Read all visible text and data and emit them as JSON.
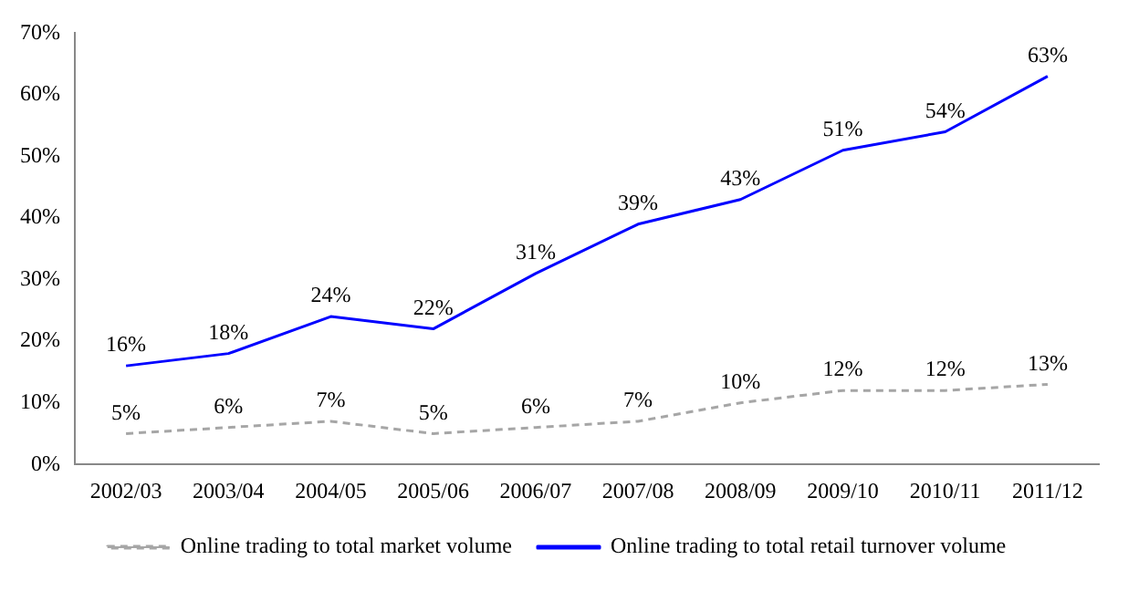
{
  "chart_data": {
    "type": "line",
    "categories": [
      "2002/03",
      "2003/04",
      "2004/05",
      "2005/06",
      "2006/07",
      "2007/08",
      "2008/09",
      "2009/10",
      "2010/11",
      "2011/12"
    ],
    "series": [
      {
        "name": "Online trading to total market volume",
        "color": "#a6a6a6",
        "line_style": "dashed",
        "values": [
          5,
          6,
          7,
          5,
          6,
          7,
          10,
          12,
          12,
          13
        ],
        "value_labels": [
          "5%",
          "6%",
          "7%",
          "5%",
          "6%",
          "7%",
          "10%",
          "12%",
          "12%",
          "13%"
        ]
      },
      {
        "name": "Online trading to total retail turnover volume",
        "color": "#0000ff",
        "line_style": "solid",
        "values": [
          16,
          18,
          24,
          22,
          31,
          39,
          43,
          51,
          54,
          63
        ],
        "value_labels": [
          "16%",
          "18%",
          "24%",
          "22%",
          "31%",
          "39%",
          "43%",
          "51%",
          "54%",
          "63%"
        ]
      }
    ],
    "ylim": [
      0,
      70
    ],
    "yticks": [
      {
        "value": 0,
        "label": "0%"
      },
      {
        "value": 10,
        "label": "10%"
      },
      {
        "value": 20,
        "label": "20%"
      },
      {
        "value": 30,
        "label": "30%"
      },
      {
        "value": 40,
        "label": "40%"
      },
      {
        "value": 50,
        "label": "50%"
      },
      {
        "value": 60,
        "label": "60%"
      },
      {
        "value": 70,
        "label": "70%"
      }
    ],
    "grid": false,
    "legend": "bottom",
    "marker": "none"
  }
}
